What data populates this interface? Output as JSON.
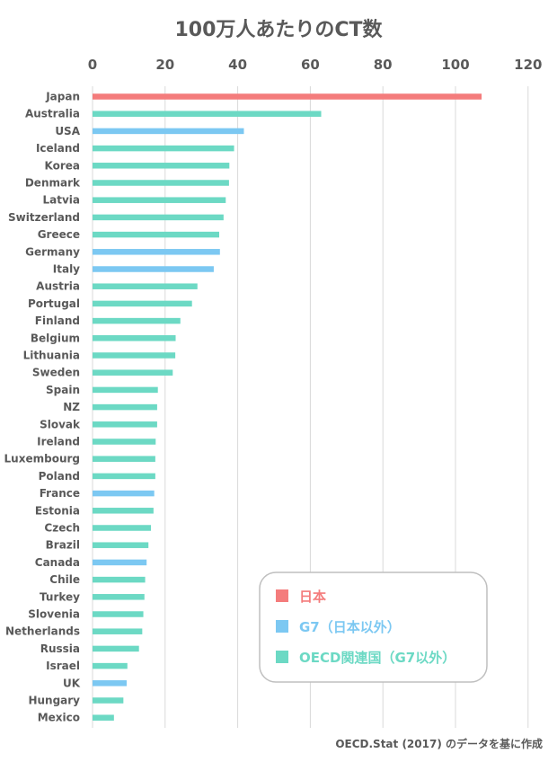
{
  "chart_data": {
    "type": "bar",
    "orientation": "horizontal",
    "title": "100万人あたりのCT数",
    "xlim": [
      0,
      120
    ],
    "xticks": [
      0,
      20,
      40,
      60,
      80,
      100,
      120
    ],
    "grid": true,
    "legend_position": "bottom-right",
    "colors": {
      "japan": "#f47c7c",
      "g7": "#7cc8f2",
      "oecd": "#6cd9c4"
    },
    "legend": [
      {
        "label": "日本",
        "group": "japan"
      },
      {
        "label": "G7（日本以外）",
        "group": "g7"
      },
      {
        "label": "OECD関連国（G7以外）",
        "group": "oecd"
      }
    ],
    "categories": [
      "Japan",
      "Australia",
      "USA",
      "Iceland",
      "Korea",
      "Denmark",
      "Latvia",
      "Switzerland",
      "Greece",
      "Germany",
      "Italy",
      "Austria",
      "Portugal",
      "Finland",
      "Belgium",
      "Lithuania",
      "Sweden",
      "Spain",
      "NZ",
      "Slovak",
      "Ireland",
      "Luxembourg",
      "Poland",
      "France",
      "Estonia",
      "Czech",
      "Brazil",
      "Canada",
      "Chile",
      "Turkey",
      "Slovenia",
      "Netherlands",
      "Russia",
      "Israel",
      "UK",
      "Hungary",
      "Mexico"
    ],
    "values": [
      107.2,
      63.0,
      41.7,
      39.0,
      37.7,
      37.6,
      36.7,
      36.1,
      34.9,
      35.1,
      33.4,
      28.9,
      27.4,
      24.2,
      22.9,
      22.8,
      22.1,
      18.0,
      17.8,
      17.8,
      17.4,
      17.3,
      17.3,
      17.0,
      16.8,
      16.1,
      15.4,
      14.9,
      14.5,
      14.3,
      14.0,
      13.7,
      12.8,
      9.6,
      9.4,
      8.5,
      5.9
    ],
    "groups": [
      "japan",
      "oecd",
      "g7",
      "oecd",
      "oecd",
      "oecd",
      "oecd",
      "oecd",
      "oecd",
      "g7",
      "g7",
      "oecd",
      "oecd",
      "oecd",
      "oecd",
      "oecd",
      "oecd",
      "oecd",
      "oecd",
      "oecd",
      "oecd",
      "oecd",
      "oecd",
      "g7",
      "oecd",
      "oecd",
      "oecd",
      "g7",
      "oecd",
      "oecd",
      "oecd",
      "oecd",
      "oecd",
      "oecd",
      "g7",
      "oecd",
      "oecd"
    ],
    "source": "OECD.Stat (2017) のデータを基に作成"
  }
}
